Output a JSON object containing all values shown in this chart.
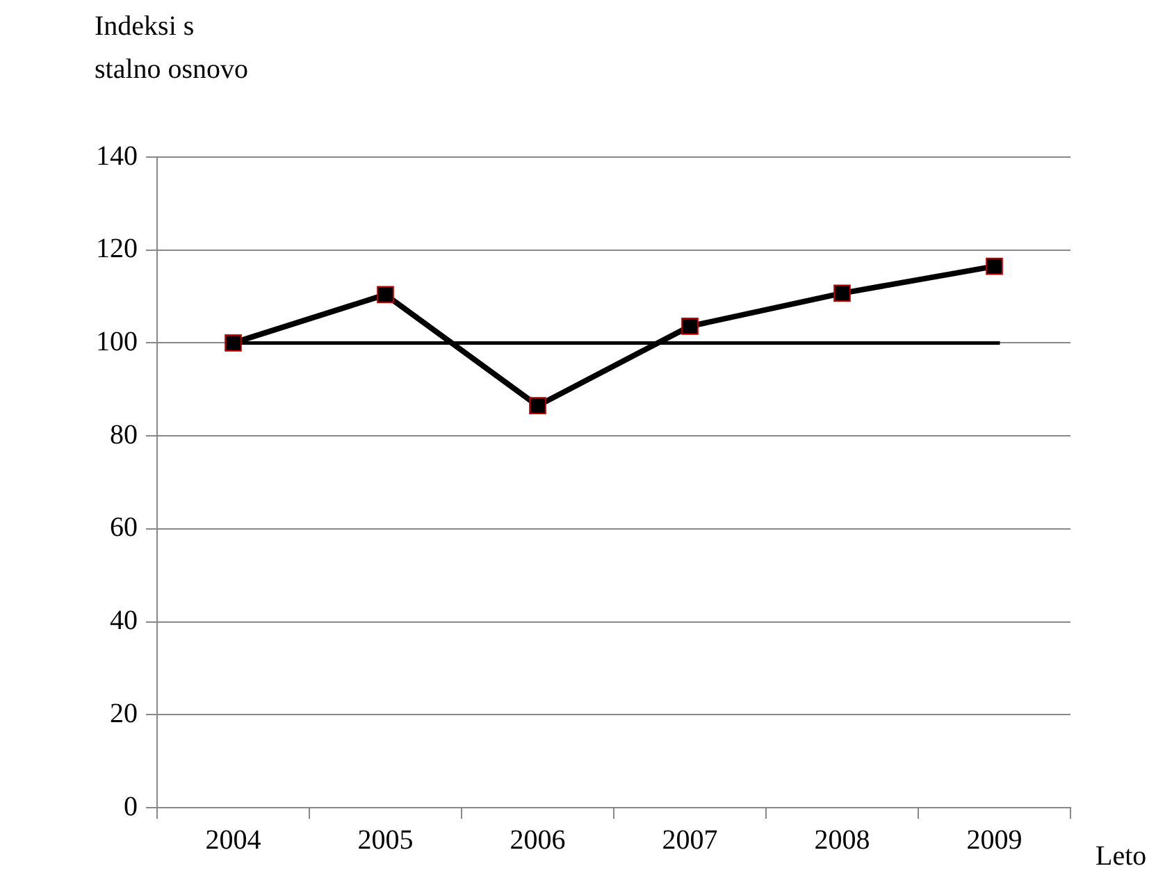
{
  "chart_data": {
    "type": "line",
    "ylabel": "Indeksi s\nstalno osnovo",
    "xlabel": "Leto",
    "categories": [
      "2004",
      "2005",
      "2006",
      "2007",
      "2008",
      "2009"
    ],
    "series": [
      {
        "color": "#000000",
        "values": [
          100,
          110.4,
          86.5,
          103.6,
          110.7,
          116.5
        ]
      }
    ],
    "ylim": [
      0,
      140
    ],
    "yticks": [
      0,
      20,
      40,
      60,
      80,
      100,
      120,
      140
    ],
    "grid": "y",
    "legend": false,
    "marker": "square",
    "line_style": "solid",
    "ref_lines": [
      {
        "axis": "y",
        "value": 100,
        "color": "#000000",
        "line_style": "solid"
      }
    ]
  }
}
